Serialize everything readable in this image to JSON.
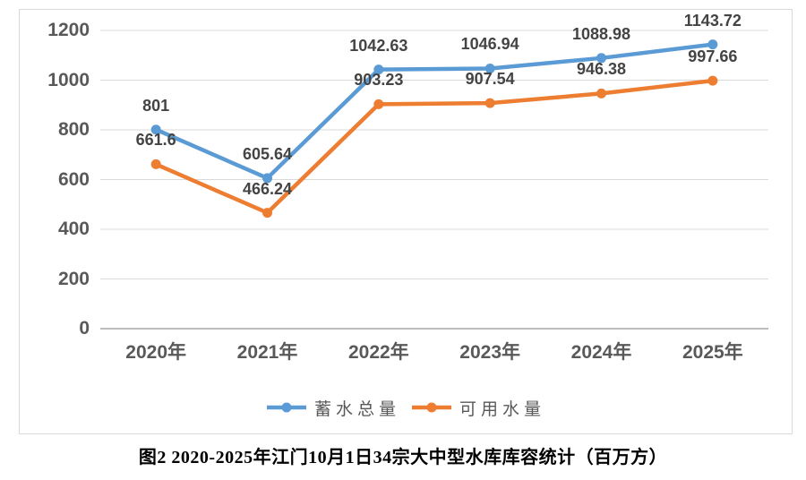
{
  "chart_data": {
    "type": "line",
    "categories": [
      "2020年",
      "2021年",
      "2022年",
      "2023年",
      "2024年",
      "2025年"
    ],
    "series": [
      {
        "name": "蓄水总量",
        "color": "#5B9BD5",
        "values": [
          801,
          605.64,
          1042.63,
          1046.94,
          1088.98,
          1143.72
        ],
        "labels": [
          "801",
          "605.64",
          "1042.63",
          "1046.94",
          "1088.98",
          "1143.72"
        ]
      },
      {
        "name": "可用水量",
        "color": "#ED7D31",
        "values": [
          661.6,
          466.24,
          903.23,
          907.54,
          946.38,
          997.66
        ],
        "labels": [
          "661.6",
          "466.24",
          "903.23",
          "907.54",
          "946.38",
          "997.66"
        ]
      }
    ],
    "y_ticks": [
      0,
      200,
      400,
      600,
      800,
      1000,
      1200
    ],
    "ylim": [
      0,
      1200
    ],
    "xlabel": "",
    "ylabel": "",
    "title": "",
    "grid": true,
    "legend_position": "bottom",
    "marker": "circle"
  },
  "colors": {
    "gridline": "#D9D9D9",
    "axis_line": "#A6A6A6",
    "tick_label": "#595959",
    "data_label": "#444444",
    "chart_border": "#D9D9D9"
  },
  "caption": "图2 2020-2025年江门10月1日34宗大中型水库库容统计（百万方）"
}
